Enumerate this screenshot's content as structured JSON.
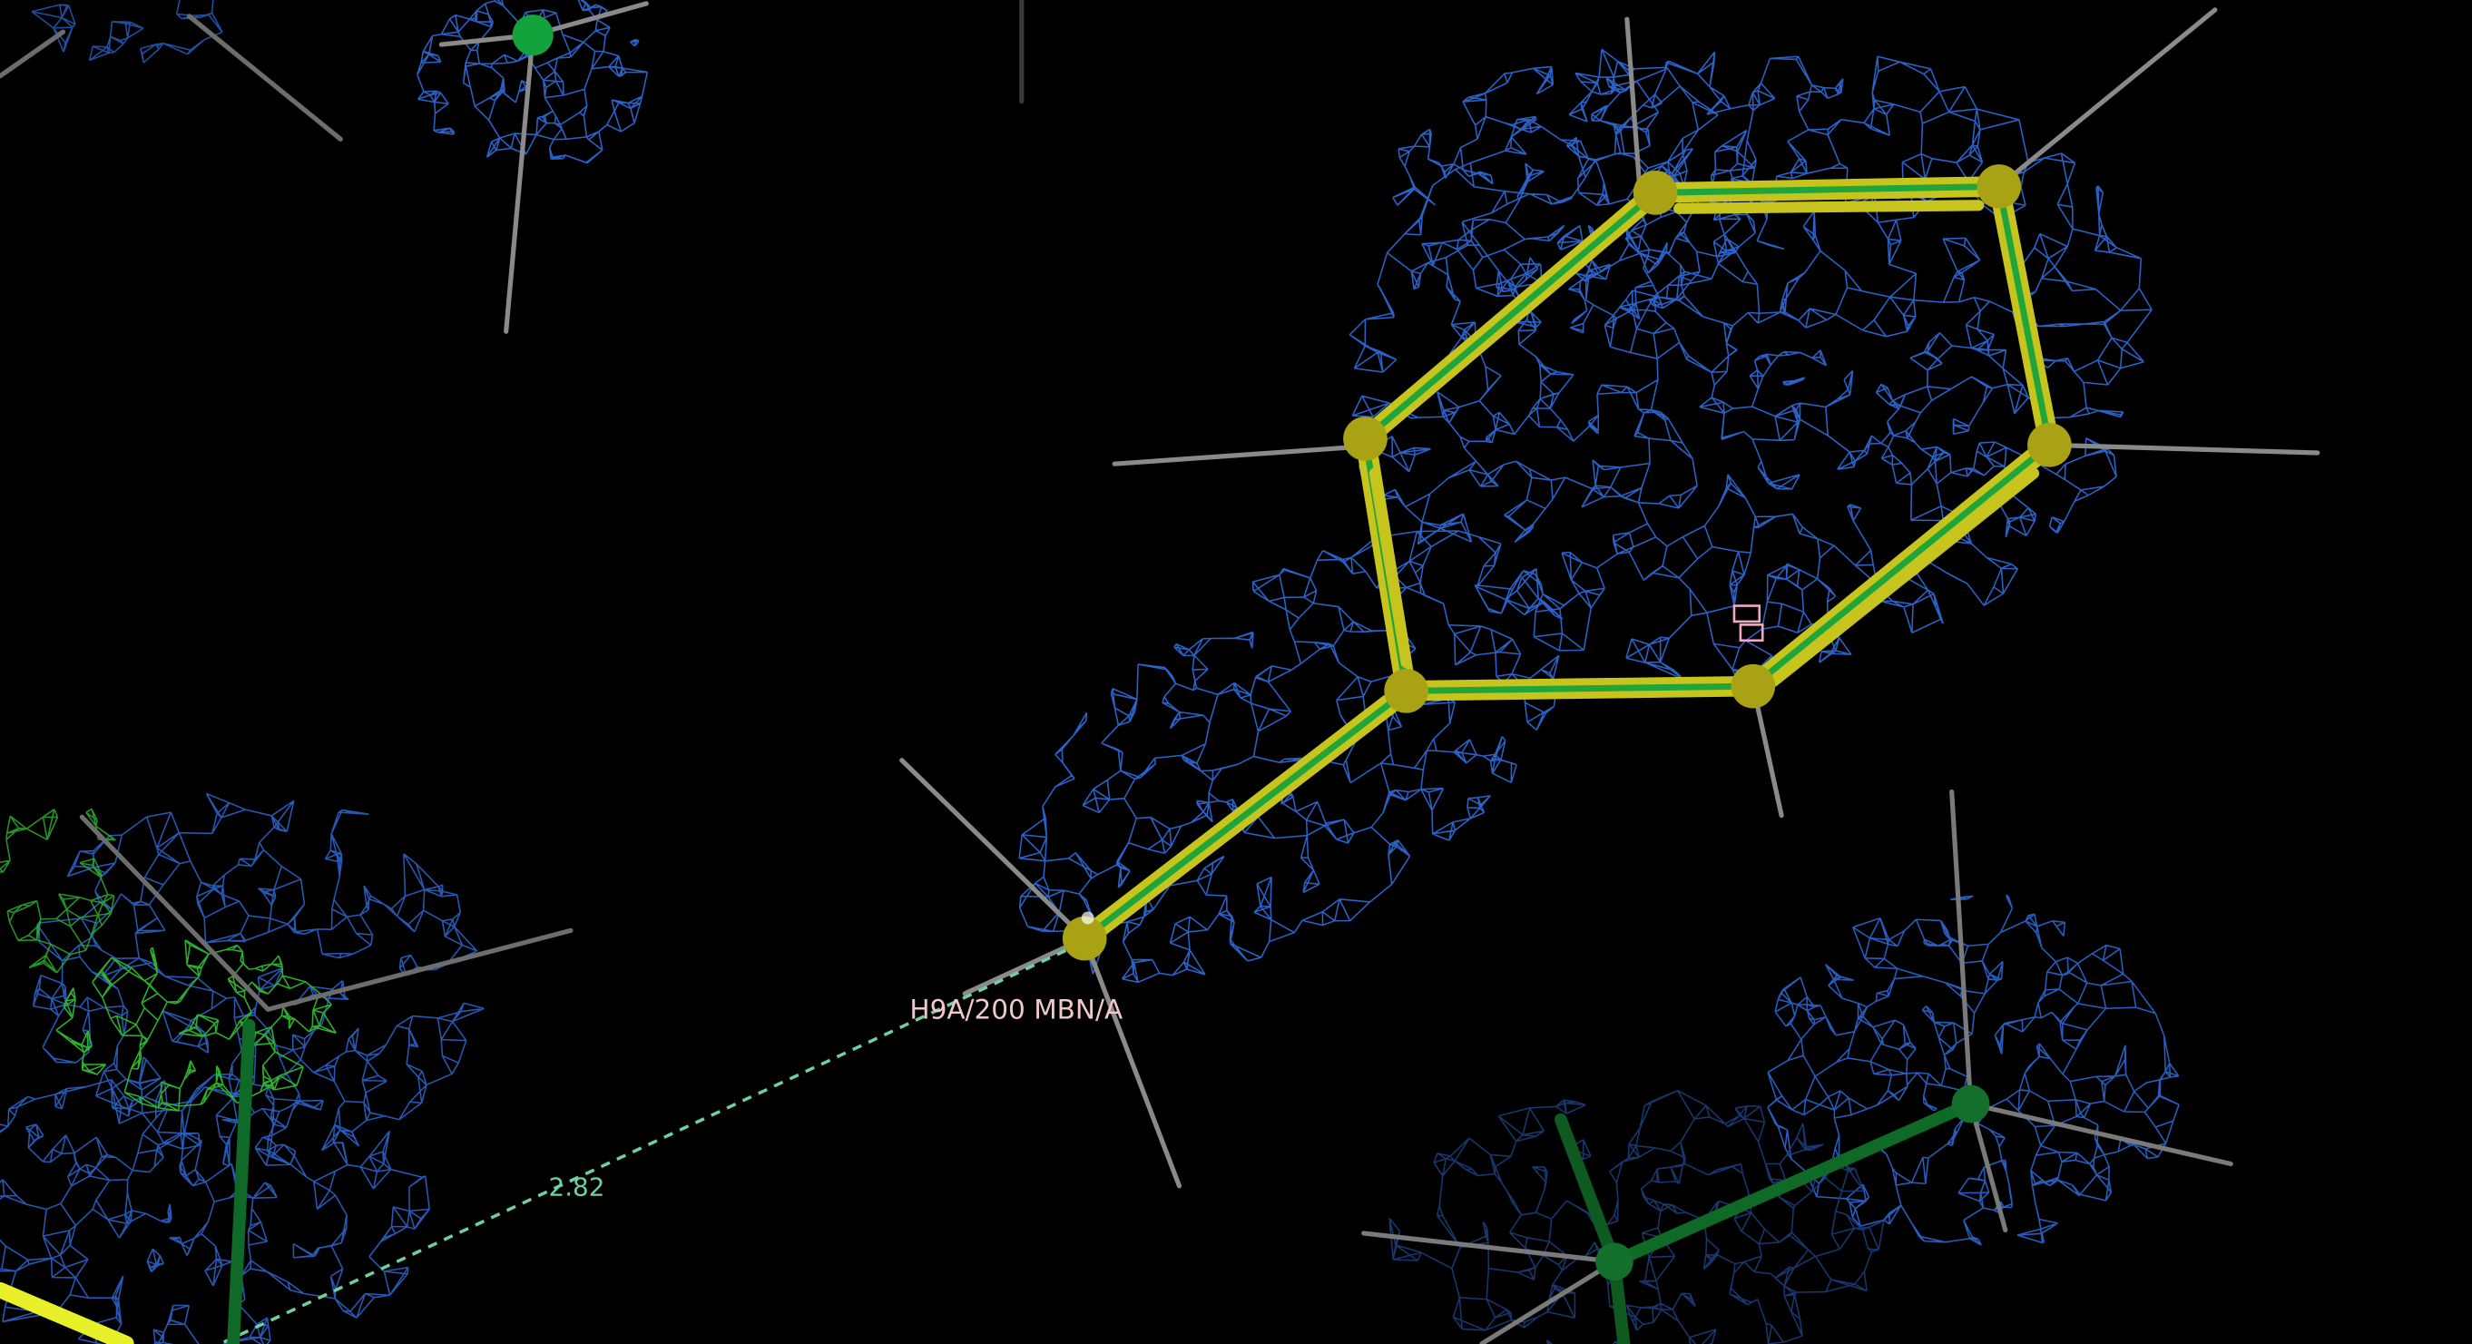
{
  "labels": {
    "atom": "H9A/200 MBN/A",
    "distance": "2.82"
  },
  "colors": {
    "background": "#000000",
    "map_mesh": "#2b62c7",
    "map_mesh_dim": "#1d3f80",
    "diff_map_mesh": "#2fb82f",
    "ligand_bond": "#c8c41e",
    "ligand_bond_inner": "#1fa53a",
    "ligand_atom": "#a8a214",
    "hydrogen": "#8a8a8a",
    "carbon_green": "#13a33c",
    "distance_line": "#6fd0a0",
    "atom_label": "#f0c8c8",
    "yellow_bond": "#e8f02a"
  },
  "icons": {
    "center_marker": "center-crosshair-icon"
  }
}
